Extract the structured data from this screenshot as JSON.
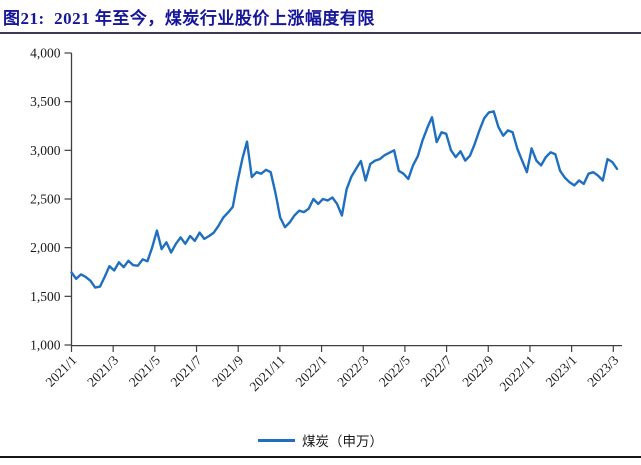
{
  "figure": {
    "title": "图21:  2021 年至今，煤炭行业股价上涨幅度有限",
    "legend": {
      "label": "煤炭（申万）"
    }
  },
  "colors": {
    "series_line": "#1F6FC0",
    "title_text": "#16169A",
    "axis": "#404040",
    "tick_text": "#1A1A1A"
  },
  "chart_data": {
    "type": "line",
    "title": "图21:  2021 年至今，煤炭行业股价上涨幅度有限",
    "xlabel": "",
    "ylabel": "",
    "ylim": [
      1000,
      4000
    ],
    "grid": false,
    "legend_position": "bottom-center",
    "y_ticks": [
      4000,
      3500,
      3000,
      2500,
      2000,
      1500,
      1000
    ],
    "y_tick_labels": [
      "4,000",
      "3,500",
      "3,000",
      "2,500",
      "2,000",
      "1,500",
      "1,000"
    ],
    "x_tick_labels": [
      "2021/1",
      "2021/3",
      "2021/5",
      "2021/7",
      "2021/9",
      "2021/11",
      "2022/1",
      "2022/3",
      "2022/5",
      "2022/7",
      "2022/9",
      "2022/11",
      "2023/1",
      "2023/3"
    ],
    "series": [
      {
        "name": "煤炭（申万）",
        "color": "#1F6FC0",
        "frequency": "weekly",
        "x_start": "2021/1",
        "x_end": "2023/3",
        "values": [
          1745,
          1680,
          1725,
          1700,
          1660,
          1590,
          1600,
          1700,
          1810,
          1765,
          1850,
          1800,
          1865,
          1820,
          1815,
          1880,
          1860,
          2000,
          2175,
          1985,
          2055,
          1950,
          2040,
          2105,
          2040,
          2120,
          2070,
          2155,
          2090,
          2120,
          2155,
          2225,
          2310,
          2360,
          2420,
          2680,
          2910,
          3090,
          2725,
          2775,
          2760,
          2800,
          2775,
          2560,
          2310,
          2210,
          2260,
          2330,
          2380,
          2365,
          2400,
          2500,
          2450,
          2500,
          2485,
          2515,
          2450,
          2330,
          2600,
          2730,
          2810,
          2890,
          2690,
          2860,
          2895,
          2910,
          2950,
          2975,
          3000,
          2790,
          2760,
          2705,
          2845,
          2940,
          3100,
          3230,
          3340,
          3085,
          3185,
          3170,
          3000,
          2930,
          2990,
          2895,
          2945,
          3065,
          3205,
          3330,
          3390,
          3400,
          3240,
          3150,
          3205,
          3185,
          3015,
          2895,
          2775,
          3020,
          2895,
          2845,
          2930,
          2980,
          2960,
          2790,
          2720,
          2672,
          2640,
          2690,
          2655,
          2760,
          2775,
          2740,
          2690,
          2910,
          2880,
          2810
        ]
      }
    ]
  }
}
